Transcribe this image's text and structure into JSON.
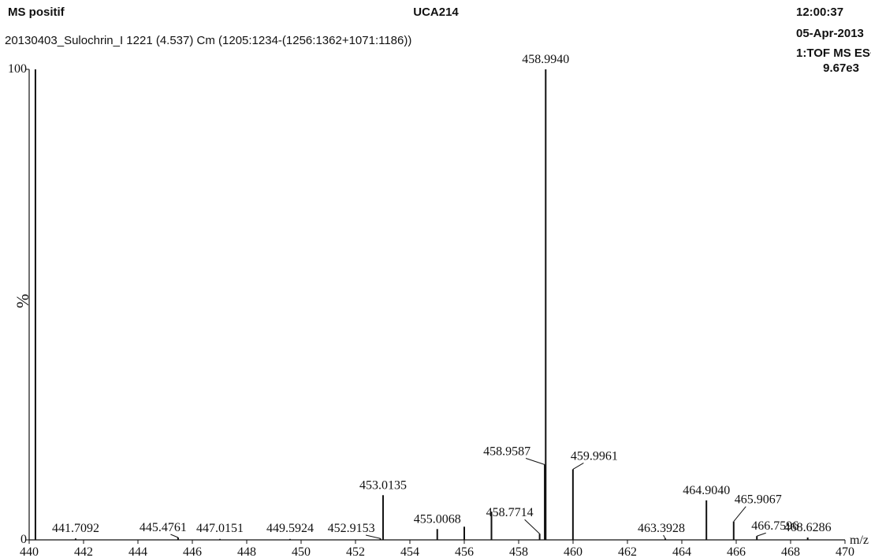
{
  "chart_data": {
    "type": "spectrum",
    "title": "UCA214",
    "mode": "MS positif",
    "subtitle": "20130403_Sulochrin_I 1221 (4.537) Cm (1205:1234-(1256:1362+1071:1186))",
    "time": "12:00:37",
    "date": "05-Apr-2013",
    "instrument": "1:TOF MS ES+",
    "intensity": "9.67e3",
    "y_label": "%",
    "x_label": "m/z",
    "xlim": [
      440,
      470
    ],
    "xticks": [
      440,
      442,
      444,
      446,
      448,
      450,
      452,
      454,
      456,
      458,
      460,
      462,
      464,
      466,
      468,
      470
    ],
    "ylim": [
      0,
      100
    ],
    "yticks": [
      0,
      100
    ],
    "color": "#111111",
    "x": [
      440.23,
      441.7092,
      445.4761,
      447.0151,
      449.5924,
      452.9153,
      453.0135,
      455.0068,
      456.0,
      457.0,
      458.7714,
      458.9587,
      458.994,
      459.9961,
      463.3928,
      464.904,
      465.9067,
      466.7596,
      468.6286
    ],
    "values": [
      100,
      0.3,
      0.5,
      0.2,
      0.2,
      0.3,
      9.5,
      2.3,
      2.8,
      6.0,
      1.3,
      16,
      100,
      15,
      0.3,
      8.4,
      3.9,
      0.8,
      0.5
    ],
    "x_labels": [
      null,
      "441.7092",
      "445.4761",
      "447.0151",
      "449.5924",
      "452.9153",
      "453.0135",
      "455.0068",
      null,
      null,
      "458.7714",
      "458.9587",
      "458.9940",
      "459.9961",
      "463.3928",
      "464.9040",
      "465.9067",
      "466.7596",
      "468.6286"
    ]
  }
}
